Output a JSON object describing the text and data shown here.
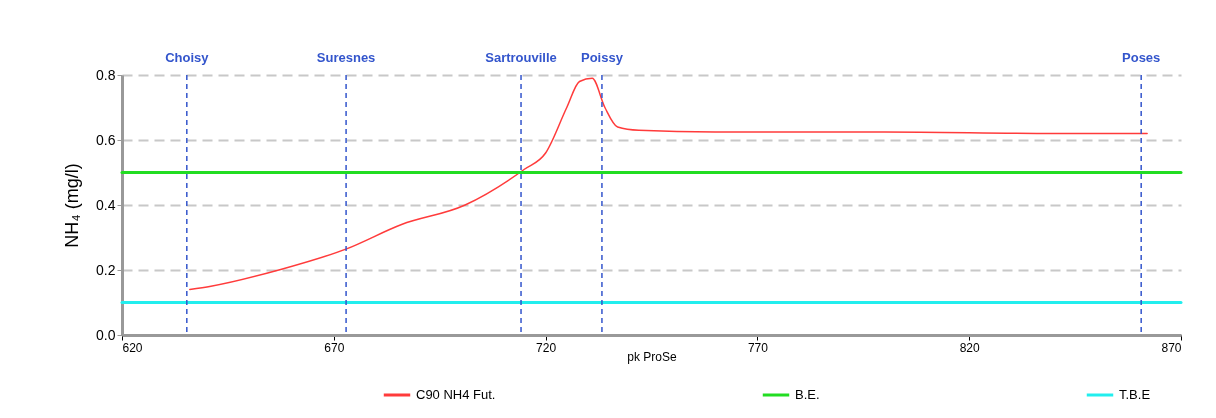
{
  "chart_data": {
    "type": "line",
    "xlabel": "pk ProSe",
    "ylabel": "NH₄ (mg/l)",
    "xlim": [
      620,
      870
    ],
    "xticks": [
      620,
      670,
      720,
      770,
      820,
      870
    ],
    "ylim": [
      0,
      0.8
    ],
    "yticks": [
      {
        "value": 0,
        "label": "0.0"
      },
      {
        "value": 0.2,
        "label": "0.2"
      },
      {
        "value": 0.4,
        "label": "0.4"
      },
      {
        "value": 0.6,
        "label": "0.6"
      },
      {
        "value": 0.8,
        "label": "0.8"
      }
    ],
    "grid": "y",
    "legend": "bottom",
    "series": [
      {
        "name": "C90 NH4 Fut.",
        "color": "#ff3b3b",
        "x": [
          636,
          641,
          657,
          673,
          686,
          701,
          715,
          720,
          725,
          728,
          731,
          734,
          737,
          742,
          760,
          800,
          840,
          862
        ],
        "values": [
          0.14,
          0.15,
          0.2,
          0.265,
          0.34,
          0.4,
          0.51,
          0.56,
          0.7,
          0.78,
          0.79,
          0.7,
          0.64,
          0.63,
          0.625,
          0.625,
          0.62,
          0.62
        ]
      },
      {
        "name": "B.E.",
        "color": "#22dd22",
        "x": [
          620,
          870
        ],
        "values": [
          0.5,
          0.5
        ]
      },
      {
        "name": "T.B.E",
        "color": "#22eeee",
        "x": [
          620,
          870
        ],
        "values": [
          0.1,
          0.1
        ]
      }
    ],
    "ref_lines": [
      {
        "axis": "x",
        "value": 635.3,
        "label": "Choisy",
        "color": "#3355cc",
        "line_style": "dashed"
      },
      {
        "axis": "x",
        "value": 672.9,
        "label": "Suresnes",
        "color": "#3355cc",
        "line_style": "dashed"
      },
      {
        "axis": "x",
        "value": 714.2,
        "label": "Sartrouville",
        "color": "#3355cc",
        "line_style": "dashed"
      },
      {
        "axis": "x",
        "value": 733.3,
        "label": "Poissy",
        "color": "#3355cc",
        "line_style": "dashed"
      },
      {
        "axis": "x",
        "value": 860.6,
        "label": "Poses",
        "color": "#3355cc",
        "line_style": "dashed"
      }
    ]
  }
}
